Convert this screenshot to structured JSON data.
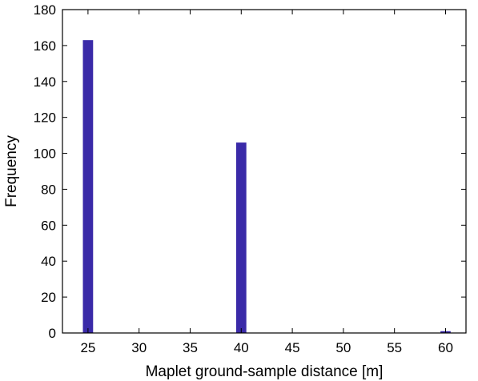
{
  "chart_data": {
    "type": "bar",
    "xlabel": "Maplet ground-sample distance [m]",
    "ylabel": "Frequency",
    "xlim": [
      22.5,
      62
    ],
    "ylim": [
      0,
      180
    ],
    "xticks": [
      25,
      30,
      35,
      40,
      45,
      50,
      55,
      60
    ],
    "yticks": [
      0,
      20,
      40,
      60,
      80,
      100,
      120,
      140,
      160,
      180
    ],
    "bar_width": 1,
    "bars": [
      {
        "x": 25,
        "y": 163
      },
      {
        "x": 40,
        "y": 106
      },
      {
        "x": 60,
        "y": 1
      }
    ],
    "bar_color": "#3a2aa8",
    "grid": false
  }
}
